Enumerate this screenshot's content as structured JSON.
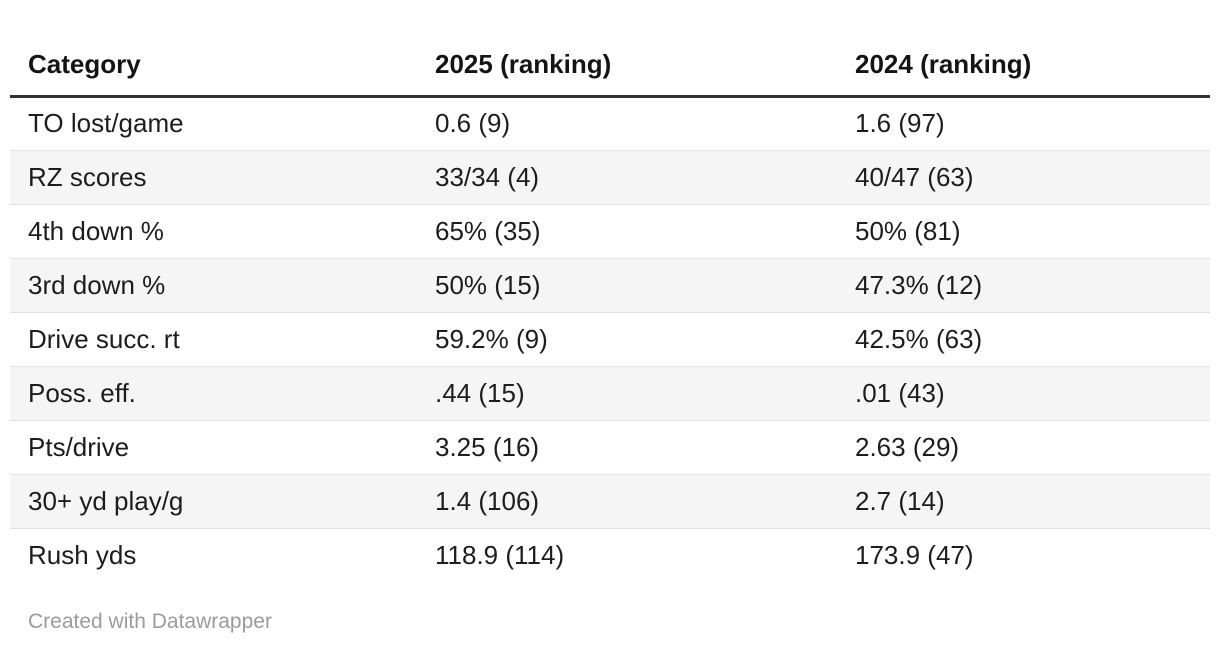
{
  "chart_data": {
    "type": "table",
    "columns": [
      "Category",
      "2025 (ranking)",
      "2024 (ranking)"
    ],
    "rows": [
      [
        "TO lost/game",
        "0.6 (9)",
        "1.6 (97)"
      ],
      [
        "RZ scores",
        "33/34 (4)",
        "40/47 (63)"
      ],
      [
        "4th down %",
        "65% (35)",
        "50% (81)"
      ],
      [
        "3rd down %",
        "50% (15)",
        "47.3% (12)"
      ],
      [
        "Drive succ. rt",
        "59.2% (9)",
        "42.5% (63)"
      ],
      [
        "Poss. eff.",
        ".44 (15)",
        ".01 (43)"
      ],
      [
        "Pts/drive",
        "3.25 (16)",
        "2.63 (29)"
      ],
      [
        "30+ yd play/g",
        "1.4 (106)",
        "2.7 (14)"
      ],
      [
        "Rush yds",
        "118.9 (114)",
        "173.9 (47)"
      ]
    ],
    "layout": {
      "striped_rows": true,
      "stripe_on_even_rows": true,
      "header_rule": "thick"
    }
  },
  "footer": {
    "credit": "Created with Datawrapper"
  },
  "colors": {
    "text": "#1d1d1d",
    "header_text": "#141414",
    "header_rule": "#333333",
    "row_divider": "#e3e3e3",
    "row_stripe": "#f5f5f5",
    "credit_text": "#9b9b9b",
    "background": "#ffffff"
  }
}
